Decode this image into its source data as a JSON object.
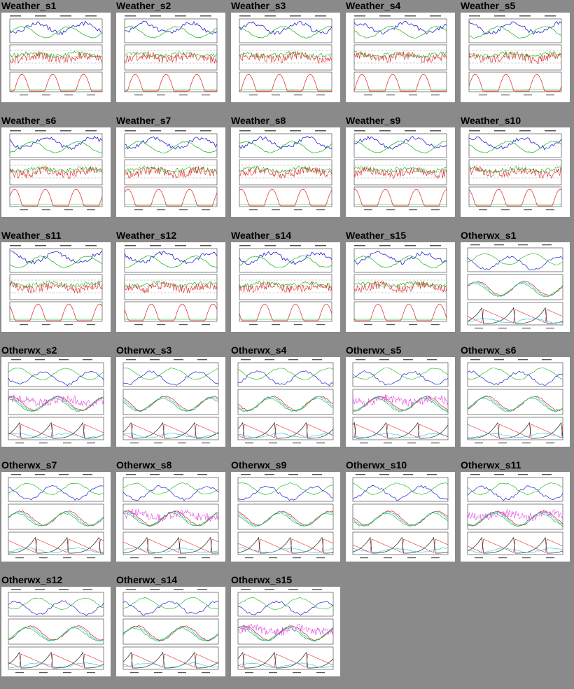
{
  "window": {
    "background": "#8a8a8a"
  },
  "thumbnails": [
    {
      "title": "Weather_s1",
      "kind": "weather"
    },
    {
      "title": "Weather_s2",
      "kind": "weather"
    },
    {
      "title": "Weather_s3",
      "kind": "weather"
    },
    {
      "title": "Weather_s4",
      "kind": "weather"
    },
    {
      "title": "Weather_s5",
      "kind": "weather"
    },
    {
      "title": "Weather_s6",
      "kind": "weather"
    },
    {
      "title": "Weather_s7",
      "kind": "weather"
    },
    {
      "title": "Weather_s8",
      "kind": "weather"
    },
    {
      "title": "Weather_s9",
      "kind": "weather"
    },
    {
      "title": "Weather_s10",
      "kind": "weather"
    },
    {
      "title": "Weather_s11",
      "kind": "weather"
    },
    {
      "title": "Weather_s12",
      "kind": "weather"
    },
    {
      "title": "Weather_s14",
      "kind": "weather"
    },
    {
      "title": "Weather_s15",
      "kind": "weather"
    },
    {
      "title": "Otherwx_s1",
      "kind": "otherwx"
    },
    {
      "title": "Otherwx_s2",
      "kind": "otherwx"
    },
    {
      "title": "Otherwx_s3",
      "kind": "otherwx"
    },
    {
      "title": "Otherwx_s4",
      "kind": "otherwx"
    },
    {
      "title": "Otherwx_s5",
      "kind": "otherwx"
    },
    {
      "title": "Otherwx_s6",
      "kind": "otherwx"
    },
    {
      "title": "Otherwx_s7",
      "kind": "otherwx"
    },
    {
      "title": "Otherwx_s8",
      "kind": "otherwx"
    },
    {
      "title": "Otherwx_s9",
      "kind": "otherwx"
    },
    {
      "title": "Otherwx_s10",
      "kind": "otherwx"
    },
    {
      "title": "Otherwx_s11",
      "kind": "otherwx"
    },
    {
      "title": "Otherwx_s12",
      "kind": "otherwx"
    },
    {
      "title": "Otherwx_s14",
      "kind": "otherwx"
    },
    {
      "title": "Otherwx_s15",
      "kind": "otherwx"
    }
  ],
  "colors": {
    "blue": "#2020d0",
    "green": "#10b010",
    "red": "#e02020",
    "cyan": "#20c0e0",
    "magenta": "#e020e0",
    "black": "#202020"
  }
}
